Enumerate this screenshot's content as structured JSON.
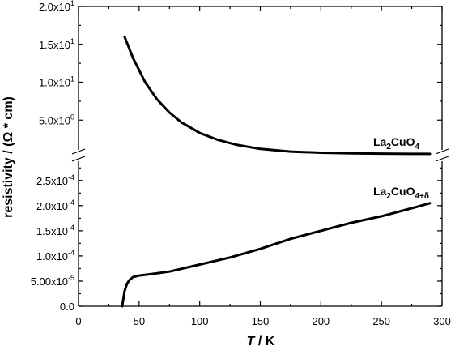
{
  "chart_data": {
    "type": "line",
    "xlabel_italic": "T",
    "xlabel_rest": " / K",
    "ylabel": "resistivity / (Ω * cm)",
    "xlim": [
      0,
      300
    ],
    "x_ticks": [
      "0",
      "50",
      "100",
      "150",
      "200",
      "250",
      "300"
    ],
    "axis_break": true,
    "upper_panel": {
      "ylim": [
        0,
        20
      ],
      "y_ticks": [
        {
          "value": 5,
          "mantissa": "5.0x10",
          "exp": "0"
        },
        {
          "value": 10,
          "mantissa": "1.0x10",
          "exp": "1"
        },
        {
          "value": 15,
          "mantissa": "1.5x10",
          "exp": "1"
        },
        {
          "value": 20,
          "mantissa": "2.0x10",
          "exp": "1"
        }
      ]
    },
    "lower_panel": {
      "ylim": [
        0,
        0.00029
      ],
      "y_ticks": [
        {
          "value": 0,
          "mantissa": "0.0",
          "exp": ""
        },
        {
          "value": 5e-05,
          "mantissa": "5.00x10",
          "exp": "-5"
        },
        {
          "value": 0.0001,
          "mantissa": "1.0x10",
          "exp": "-4"
        },
        {
          "value": 0.00015,
          "mantissa": "1.5x10",
          "exp": "-4"
        },
        {
          "value": 0.0002,
          "mantissa": "2.0x10",
          "exp": "-4"
        },
        {
          "value": 0.00025,
          "mantissa": "2.5x10",
          "exp": "-4"
        }
      ]
    },
    "series": [
      {
        "name_base": "La",
        "name_sub1": "2",
        "name_mid": "CuO",
        "name_sub2": "4",
        "panel": "upper",
        "x": [
          38,
          45,
          55,
          65,
          75,
          85,
          100,
          115,
          130,
          150,
          175,
          200,
          225,
          250,
          275,
          290
        ],
        "values": [
          16.0,
          13.2,
          10.0,
          7.7,
          6.0,
          4.7,
          3.3,
          2.4,
          1.75,
          1.2,
          0.85,
          0.7,
          0.62,
          0.58,
          0.55,
          0.55
        ]
      },
      {
        "name_base": "La",
        "name_sub1": "2",
        "name_mid": "CuO",
        "name_sub2": "4+δ",
        "panel": "lower",
        "x": [
          36,
          37,
          38,
          40,
          42,
          45,
          50,
          60,
          75,
          100,
          125,
          150,
          175,
          200,
          225,
          250,
          275,
          290
        ],
        "values": [
          0.0,
          1.5e-05,
          3e-05,
          4.5e-05,
          5.2e-05,
          5.8e-05,
          6.1e-05,
          6.4e-05,
          6.9e-05,
          8.3e-05,
          9.7e-05,
          0.000114,
          0.000134,
          0.00015,
          0.000166,
          0.000179,
          0.000195,
          0.000205
        ]
      }
    ]
  }
}
